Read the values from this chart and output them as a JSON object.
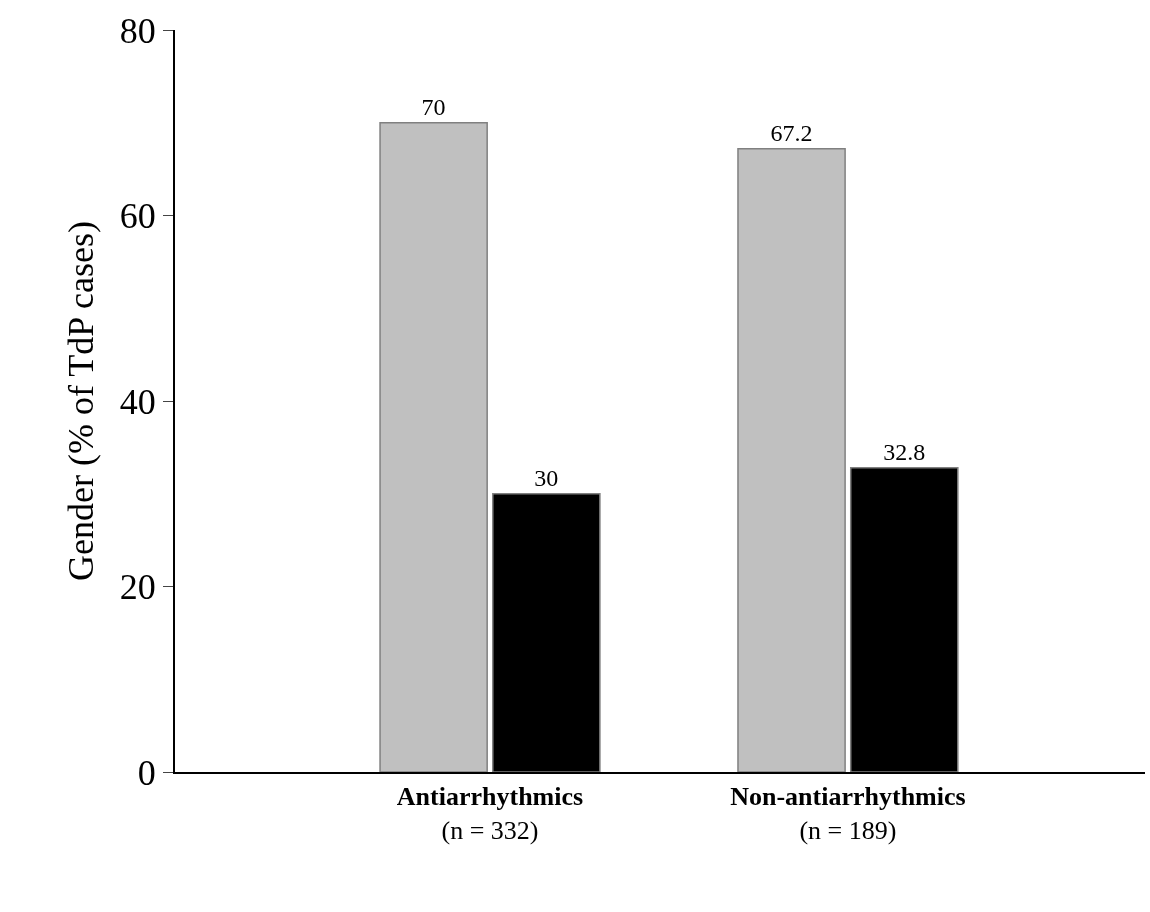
{
  "chart_data": {
    "type": "bar",
    "ylabel": "Gender (% of TdP cases)",
    "categories": [
      "Antiarrhythmics\n(n = 332)",
      "Non-antiarrhythmics\n(n = 189)"
    ],
    "series": [
      {
        "color": "#c0c0c0",
        "values": [
          70,
          67.2
        ]
      },
      {
        "color": "#000000",
        "values": [
          30,
          32.8
        ]
      }
    ],
    "ylim": [
      0,
      80
    ],
    "yticks": [
      0,
      20,
      40,
      60,
      80
    ],
    "data_labels": true
  }
}
